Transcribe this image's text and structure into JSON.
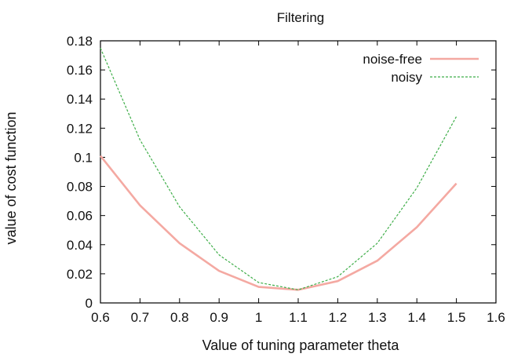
{
  "chart_data": {
    "type": "line",
    "title": "Filtering",
    "xlabel": "Value of tuning parameter theta",
    "ylabel": "value of cost function",
    "xlim": [
      0.6,
      1.6
    ],
    "ylim": [
      0,
      0.18
    ],
    "x_ticks": [
      "0.6",
      "0.7",
      "0.8",
      "0.9",
      "1",
      "1.1",
      "1.2",
      "1.3",
      "1.4",
      "1.5",
      "1.6"
    ],
    "y_ticks": [
      "0",
      "0.02",
      "0.04",
      "0.06",
      "0.08",
      "0.1",
      "0.12",
      "0.14",
      "0.16",
      "0.18"
    ],
    "grid": false,
    "legend_position": "top-right",
    "series": [
      {
        "name": "noise-free",
        "color": "#f4a9a2",
        "dash": "solid",
        "x": [
          0.6,
          0.7,
          0.8,
          0.9,
          1.0,
          1.1,
          1.2,
          1.3,
          1.4,
          1.5
        ],
        "y": [
          0.101,
          0.067,
          0.041,
          0.022,
          0.011,
          0.009,
          0.015,
          0.029,
          0.052,
          0.082
        ]
      },
      {
        "name": "noisy",
        "color": "#3fae49",
        "dash": "dashed",
        "x": [
          0.6,
          0.7,
          0.8,
          0.9,
          1.0,
          1.1,
          1.2,
          1.3,
          1.4,
          1.5
        ],
        "y": [
          0.175,
          0.112,
          0.066,
          0.033,
          0.014,
          0.009,
          0.018,
          0.041,
          0.079,
          0.128
        ]
      }
    ]
  }
}
